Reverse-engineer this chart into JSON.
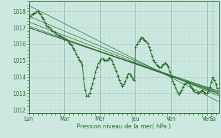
{
  "background_color": "#cce8e0",
  "grid_major_color": "#aaccc4",
  "grid_minor_color": "#bbddd6",
  "line_color": "#2d6e2d",
  "ylabel_text": "Pression niveau de la mer( hPa )",
  "ylim": [
    1011.8,
    1018.6
  ],
  "yticks": [
    1012,
    1013,
    1014,
    1015,
    1016,
    1017,
    1018
  ],
  "xlim": [
    0,
    128
  ],
  "day_tick_positions": [
    0,
    24,
    48,
    72,
    96,
    120
  ],
  "day_labels": [
    "Lun",
    "Mar",
    "Mer",
    "Jeu",
    "Ven",
    "Sa"
  ],
  "ven_tick": 120,
  "sa_tick": 124,
  "straight_lines": [
    {
      "x0": 0,
      "y0": 1018.35,
      "x1": 128,
      "y1": 1012.5
    },
    {
      "x0": 0,
      "y0": 1017.7,
      "x1": 128,
      "y1": 1012.85
    },
    {
      "x0": 0,
      "y0": 1017.35,
      "x1": 128,
      "y1": 1012.95
    },
    {
      "x0": 0,
      "y0": 1017.1,
      "x1": 128,
      "y1": 1013.0
    },
    {
      "x0": 0,
      "y0": 1017.0,
      "x1": 128,
      "y1": 1013.05
    },
    {
      "x0": 0,
      "y0": 1017.0,
      "x1": 128,
      "y1": 1013.1
    },
    {
      "x0": 0,
      "y0": 1017.0,
      "x1": 128,
      "y1": 1013.15
    }
  ],
  "wiggly_x": [
    0,
    1,
    2,
    3,
    4,
    5,
    6,
    7,
    8,
    9,
    10,
    11,
    12,
    13,
    14,
    15,
    16,
    17,
    18,
    19,
    20,
    21,
    22,
    23,
    24,
    25,
    26,
    27,
    28,
    29,
    30,
    31,
    32,
    33,
    34,
    35,
    36,
    37,
    38,
    39,
    40,
    41,
    42,
    43,
    44,
    45,
    46,
    47,
    48,
    49,
    50,
    51,
    52,
    53,
    54,
    55,
    56,
    57,
    58,
    59,
    60,
    61,
    62,
    63,
    64,
    65,
    66,
    67,
    68,
    69,
    70,
    71,
    72,
    73,
    74,
    75,
    76,
    77,
    78,
    79,
    80,
    81,
    82,
    83,
    84,
    85,
    86,
    87,
    88,
    89,
    90,
    91,
    92,
    93,
    94,
    95,
    96,
    97,
    98,
    99,
    100,
    101,
    102,
    103,
    104,
    105,
    106,
    107,
    108,
    109,
    110,
    111,
    112,
    113,
    114,
    115,
    116,
    117,
    118,
    119,
    120,
    121,
    122,
    123,
    124,
    125,
    126,
    127
  ],
  "wiggly_y": [
    1017.6,
    1017.7,
    1017.8,
    1017.85,
    1017.9,
    1017.95,
    1018.0,
    1017.9,
    1017.8,
    1017.65,
    1017.5,
    1017.3,
    1017.15,
    1017.05,
    1017.0,
    1016.9,
    1016.8,
    1016.75,
    1016.7,
    1016.6,
    1016.55,
    1016.5,
    1016.45,
    1016.4,
    1016.3,
    1016.35,
    1016.2,
    1016.1,
    1016.0,
    1015.9,
    1015.75,
    1015.6,
    1015.4,
    1015.2,
    1015.05,
    1014.9,
    1014.75,
    1013.9,
    1013.2,
    1012.85,
    1012.85,
    1013.0,
    1013.3,
    1013.6,
    1013.95,
    1014.3,
    1014.6,
    1014.85,
    1015.0,
    1015.1,
    1015.1,
    1015.05,
    1015.0,
    1015.05,
    1015.15,
    1015.1,
    1015.0,
    1014.8,
    1014.55,
    1014.35,
    1014.05,
    1013.8,
    1013.6,
    1013.45,
    1013.55,
    1013.75,
    1014.0,
    1014.2,
    1014.2,
    1014.05,
    1013.9,
    1013.8,
    1015.85,
    1016.0,
    1016.15,
    1016.3,
    1016.4,
    1016.35,
    1016.25,
    1016.15,
    1016.05,
    1015.85,
    1015.6,
    1015.3,
    1015.05,
    1014.9,
    1014.75,
    1014.65,
    1014.55,
    1014.6,
    1014.7,
    1014.8,
    1014.85,
    1014.75,
    1014.6,
    1014.3,
    1014.0,
    1013.75,
    1013.55,
    1013.35,
    1013.1,
    1012.95,
    1013.05,
    1013.2,
    1013.4,
    1013.55,
    1013.65,
    1013.7,
    1013.6,
    1013.45,
    1013.3,
    1013.2,
    1013.1,
    1013.05,
    1013.0,
    1013.05,
    1013.15,
    1013.2,
    1013.1,
    1013.0,
    1013.0,
    1013.15,
    1013.4,
    1013.7,
    1014.0,
    1013.8,
    1013.55,
    1013.3
  ]
}
